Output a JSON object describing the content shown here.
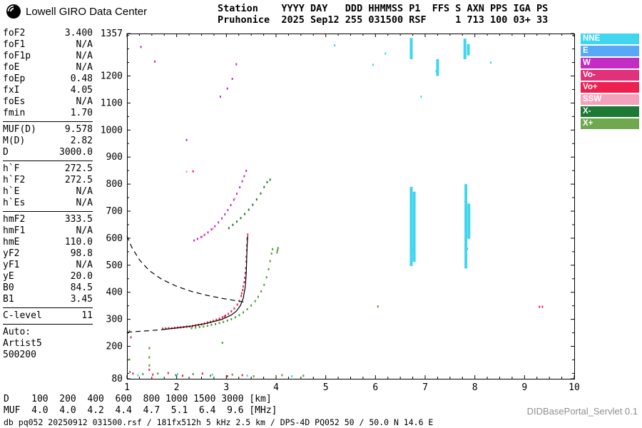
{
  "header": {
    "logo_text": "Lowell GIRO Data Center",
    "station_line1": "Station    YYYY DAY   DDD HHMMSS P1  FFS S AXN PPS IGA PS",
    "station_line2": "Pruhonice  2025 Sep12 255 031500 RSF     1 713 100 03+ 33"
  },
  "parameters": {
    "groups": [
      {
        "rows": [
          [
            "foF2",
            "3.400"
          ],
          [
            "foF1",
            "N/A"
          ],
          [
            "foF1p",
            "N/A"
          ],
          [
            "foE",
            "N/A"
          ],
          [
            "foEp",
            "0.48"
          ],
          [
            "fxI",
            "4.05"
          ],
          [
            "foEs",
            "N/A"
          ],
          [
            "fmin",
            "1.70"
          ]
        ]
      },
      {
        "rows": [
          [
            "MUF(D)",
            "9.578"
          ],
          [
            "M(D)",
            "2.82"
          ],
          [
            "D",
            "3000.0"
          ]
        ]
      },
      {
        "rows": [
          [
            "h`F",
            "272.5"
          ],
          [
            "h`F2",
            "272.5"
          ],
          [
            "h`E",
            "N/A"
          ],
          [
            "h`Es",
            "N/A"
          ]
        ]
      },
      {
        "rows": [
          [
            "hmF2",
            "333.5"
          ],
          [
            "hmF1",
            "N/A"
          ],
          [
            "hmE",
            "110.0"
          ],
          [
            "yF2",
            "98.8"
          ],
          [
            "yF1",
            "N/A"
          ],
          [
            "yE",
            "20.0"
          ],
          [
            "B0",
            "84.5"
          ],
          [
            "B1",
            "3.45"
          ]
        ]
      },
      {
        "rows": [
          [
            "C-level",
            "11"
          ]
        ]
      },
      {
        "rows": [
          [
            "Auto:",
            ""
          ],
          [
            "Artist5",
            ""
          ],
          [
            "500200",
            ""
          ]
        ]
      }
    ]
  },
  "legend": {
    "items": [
      {
        "label": "NNE",
        "color": "#3fd6ee"
      },
      {
        "label": "E",
        "color": "#58a8f8"
      },
      {
        "label": "W",
        "color": "#c32cc3"
      },
      {
        "label": "Vo-",
        "color": "#e0317a"
      },
      {
        "label": "Vo+",
        "color": "#ee2050"
      },
      {
        "label": "SSW",
        "color": "#f4a2bc"
      },
      {
        "label": "X-",
        "color": "#1d7a35"
      },
      {
        "label": "X+",
        "color": "#6fa84e"
      }
    ]
  },
  "muf_table": {
    "rows": [
      {
        "label": "D",
        "values": [
          "100",
          "200",
          "400",
          "600",
          "800",
          "1000",
          "1500",
          "3000"
        ],
        "unit": "[km]"
      },
      {
        "label": "MUF",
        "values": [
          "4.0",
          "4.0",
          "4.2",
          "4.4",
          "4.7",
          "5.1",
          "6.4",
          "9.6"
        ],
        "unit": "[MHz]"
      }
    ]
  },
  "footer": {
    "status_line": "db pq052 20250912 031500.rsf / 181fx512h 5 kHz 2.5 km / DPS-4D PQ052 50 / 50.0 N 14.6 E",
    "servlet_label": "DIDBasePortal_Servlet 0.1"
  },
  "chart_data": {
    "type": "scatter",
    "xlabel": "[MHz]",
    "ylabel": "[km]",
    "xlim": [
      1,
      10
    ],
    "ylim": [
      80,
      1357
    ],
    "x_ticks": [
      1,
      2,
      3,
      4,
      5,
      6,
      7,
      8,
      9,
      10
    ],
    "y_ticks": [
      80,
      200,
      300,
      400,
      500,
      600,
      700,
      800,
      900,
      1000,
      1100,
      1200,
      1357
    ],
    "grid": false,
    "legend_position": "top-right",
    "series": [
      {
        "name": "F-trace-O-mode-Vo-plus",
        "color": "#ee2050",
        "points": [
          [
            1.72,
            264
          ],
          [
            1.78,
            265
          ],
          [
            1.84,
            266
          ],
          [
            1.9,
            266
          ],
          [
            1.96,
            267
          ],
          [
            2.02,
            268
          ],
          [
            2.08,
            269
          ],
          [
            2.14,
            270
          ],
          [
            2.2,
            271
          ],
          [
            2.26,
            272
          ],
          [
            2.32,
            274
          ],
          [
            2.38,
            276
          ],
          [
            2.44,
            278
          ],
          [
            2.5,
            280
          ],
          [
            2.56,
            283
          ],
          [
            2.62,
            286
          ],
          [
            2.68,
            289
          ],
          [
            2.74,
            293
          ],
          [
            2.8,
            297
          ],
          [
            2.86,
            301
          ],
          [
            2.92,
            306
          ],
          [
            2.98,
            312
          ],
          [
            3.04,
            319
          ],
          [
            3.1,
            328
          ],
          [
            3.16,
            339
          ],
          [
            3.22,
            353
          ],
          [
            3.26,
            367
          ],
          [
            3.3,
            385
          ],
          [
            3.33,
            407
          ],
          [
            3.36,
            436
          ],
          [
            3.38,
            470
          ],
          [
            3.4,
            512
          ],
          [
            3.41,
            554
          ],
          [
            3.42,
            594
          ],
          [
            3.43,
            612
          ]
        ]
      },
      {
        "name": "F-trace-Vo-minus",
        "color": "#e0317a",
        "points": [
          [
            2.2,
            272
          ],
          [
            2.62,
            287
          ],
          [
            2.96,
            309
          ],
          [
            3.31,
            395
          ],
          [
            3.34,
            420
          ],
          [
            3.37,
            452
          ],
          [
            3.39,
            488
          ],
          [
            3.4,
            530
          ],
          [
            3.41,
            572
          ],
          [
            3.42,
            598
          ]
        ]
      },
      {
        "name": "F-trace-X-mode-X-plus",
        "color": "#4f9b3c",
        "points": [
          [
            2.3,
            266
          ],
          [
            2.38,
            268
          ],
          [
            2.46,
            270
          ],
          [
            2.54,
            272
          ],
          [
            2.62,
            275
          ],
          [
            2.7,
            278
          ],
          [
            2.78,
            281
          ],
          [
            2.86,
            285
          ],
          [
            2.94,
            289
          ],
          [
            3.02,
            294
          ],
          [
            3.1,
            299
          ],
          [
            3.18,
            306
          ],
          [
            3.26,
            314
          ],
          [
            3.34,
            324
          ],
          [
            3.42,
            336
          ],
          [
            3.5,
            350
          ],
          [
            3.58,
            366
          ],
          [
            3.64,
            382
          ],
          [
            3.7,
            402
          ],
          [
            3.76,
            426
          ],
          [
            3.81,
            454
          ],
          [
            3.85,
            484
          ],
          [
            3.88,
            514
          ],
          [
            3.91,
            542
          ],
          [
            3.93,
            558
          ],
          [
            4.02,
            546
          ],
          [
            4.03,
            554
          ],
          [
            4.04,
            562
          ]
        ]
      },
      {
        "name": "second-hop-W",
        "color": "#c32cc3",
        "points": [
          [
            2.35,
            590
          ],
          [
            2.42,
            596
          ],
          [
            2.49,
            603
          ],
          [
            2.56,
            611
          ],
          [
            2.63,
            620
          ],
          [
            2.7,
            631
          ],
          [
            2.77,
            643
          ],
          [
            2.84,
            657
          ],
          [
            2.91,
            672
          ],
          [
            2.97,
            687
          ],
          [
            3.03,
            703
          ],
          [
            3.09,
            721
          ],
          [
            3.15,
            741
          ],
          [
            3.21,
            763
          ],
          [
            3.27,
            787
          ],
          [
            3.32,
            809
          ],
          [
            3.36,
            828
          ],
          [
            3.4,
            848
          ],
          [
            2.88,
            1122
          ],
          [
            3.02,
            1152
          ],
          [
            3.12,
            1188
          ],
          [
            3.2,
            1242
          ],
          [
            1.28,
            1306
          ],
          [
            1.56,
            1252
          ],
          [
            2.2,
            962
          ]
        ]
      },
      {
        "name": "second-hop-X-minus",
        "color": "#1d7a35",
        "points": [
          [
            3.05,
            636
          ],
          [
            3.13,
            648
          ],
          [
            3.21,
            660
          ],
          [
            3.29,
            673
          ],
          [
            3.37,
            688
          ],
          [
            3.45,
            704
          ],
          [
            3.53,
            722
          ],
          [
            3.61,
            742
          ],
          [
            3.69,
            764
          ],
          [
            3.76,
            788
          ],
          [
            3.82,
            806
          ],
          [
            3.88,
            815
          ]
        ]
      },
      {
        "name": "SSW-echoes",
        "color": "#f4a2bc",
        "points": [
          [
            2.52,
            604
          ],
          [
            2.73,
            634
          ],
          [
            3.17,
            745
          ],
          [
            2.2,
            845
          ]
        ]
      },
      {
        "name": "E-echoes",
        "color": "#58a8f8",
        "points": [
          [
            6.75,
            556
          ],
          [
            7.85,
            560
          ]
        ]
      },
      {
        "name": "stray-green",
        "color": "#4f9b3c",
        "points": [
          [
            1.05,
            150
          ],
          [
            1.05,
            255
          ],
          [
            1.06,
            104
          ],
          [
            1.32,
            96
          ],
          [
            1.45,
            128
          ],
          [
            1.45,
            158
          ],
          [
            1.45,
            192
          ],
          [
            1.62,
            98
          ],
          [
            1.98,
            92
          ],
          [
            2.33,
            96
          ],
          [
            2.68,
            90
          ],
          [
            2.92,
            212
          ],
          [
            3.12,
            94
          ],
          [
            3.55,
            88
          ],
          [
            4.12,
            92
          ],
          [
            4.55,
            90
          ],
          [
            6.05,
            346
          ]
        ]
      },
      {
        "name": "stray-red",
        "color": "#ee2050",
        "points": [
          [
            1.08,
            232
          ],
          [
            1.12,
            98
          ],
          [
            1.45,
            112
          ],
          [
            1.52,
            94
          ],
          [
            1.83,
            100
          ],
          [
            2.12,
            90
          ],
          [
            2.52,
            98
          ],
          [
            3.02,
            88
          ],
          [
            3.32,
            92
          ],
          [
            2.33,
            846
          ],
          [
            9.3,
            345
          ],
          [
            9.36,
            345
          ]
        ]
      },
      {
        "name": "stray-cyan",
        "color": "#3fd6ee",
        "points": [
          [
            1.22,
            92
          ],
          [
            2.02,
            96
          ],
          [
            2.72,
            94
          ],
          [
            3.42,
            90
          ],
          [
            4.32,
            88
          ],
          [
            5.18,
            1312
          ],
          [
            5.95,
            1240
          ],
          [
            6.2,
            1282
          ],
          [
            6.92,
            1122
          ],
          [
            7.22,
            1216
          ],
          [
            8.32,
            1248
          ]
        ]
      }
    ],
    "spread_color": "#3fd6ee",
    "spread_segments": [
      {
        "f": 6.72,
        "h1": 497,
        "h2": 790
      },
      {
        "f": 6.78,
        "h1": 512,
        "h2": 772
      },
      {
        "f": 7.82,
        "h1": 488,
        "h2": 800
      },
      {
        "f": 7.88,
        "h1": 598,
        "h2": 728
      },
      {
        "f": 6.72,
        "h1": 1262,
        "h2": 1340
      },
      {
        "f": 7.25,
        "h1": 1200,
        "h2": 1262
      },
      {
        "f": 7.8,
        "h1": 1262,
        "h2": 1338
      },
      {
        "f": 7.87,
        "h1": 1276,
        "h2": 1318
      }
    ],
    "curves": [
      {
        "name": "trace-fit",
        "style": "solid",
        "points": [
          [
            1.72,
            262
          ],
          [
            2.0,
            268
          ],
          [
            2.3,
            275
          ],
          [
            2.6,
            285
          ],
          [
            2.9,
            299
          ],
          [
            3.1,
            316
          ],
          [
            3.2,
            330
          ],
          [
            3.28,
            350
          ],
          [
            3.34,
            378
          ],
          [
            3.38,
            420
          ],
          [
            3.4,
            470
          ],
          [
            3.41,
            530
          ],
          [
            3.42,
            580
          ],
          [
            3.43,
            608
          ]
        ]
      },
      {
        "name": "extrapolation-left",
        "style": "dashed",
        "points": [
          [
            1.0,
            252
          ],
          [
            1.2,
            255
          ],
          [
            1.45,
            258
          ],
          [
            1.72,
            262
          ]
        ]
      },
      {
        "name": "extrapolation-top",
        "style": "dashed",
        "points": [
          [
            1.0,
            608
          ],
          [
            1.1,
            565
          ],
          [
            1.25,
            520
          ],
          [
            1.45,
            480
          ],
          [
            1.7,
            448
          ],
          [
            2.0,
            422
          ],
          [
            2.3,
            403
          ],
          [
            2.6,
            389
          ],
          [
            2.9,
            378
          ],
          [
            3.15,
            370
          ],
          [
            3.35,
            364
          ]
        ]
      }
    ]
  }
}
